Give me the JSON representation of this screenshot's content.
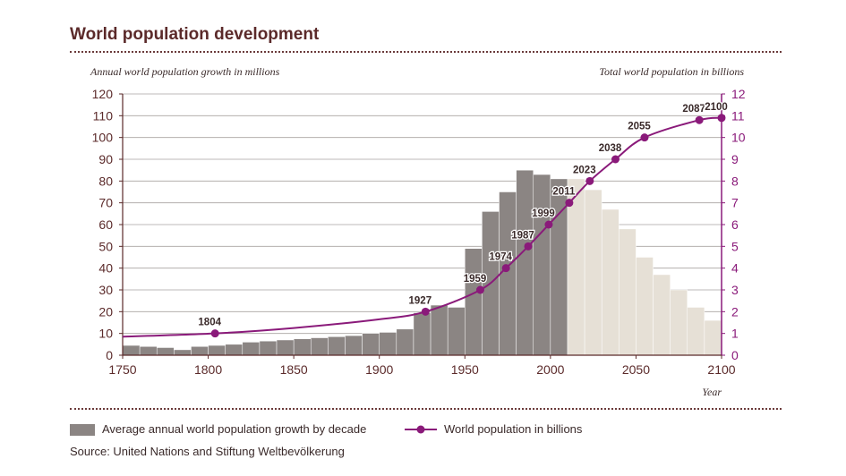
{
  "title": "World population development",
  "left_axis_caption": "Annual world population growth in millions",
  "right_axis_caption": "Total world population in billions",
  "x_axis_caption": "Year",
  "legend": {
    "bars": "Average annual world population growth by decade",
    "line": "World population in billions"
  },
  "source": "Source: United Nations and Stiftung Weltbevölkerung",
  "colors": {
    "bar_historic": "#8b8583",
    "bar_projected": "#e6e0d6",
    "line": "#8a1a7a",
    "tick_text": "#5b2a2a",
    "line_axis_text": "#8a1a7a",
    "grid": "#a9a3a0"
  },
  "chart_data": {
    "type": "bar+line",
    "x_range": [
      1750,
      2100
    ],
    "x_ticks": [
      1750,
      1800,
      1850,
      1900,
      1950,
      2000,
      2050,
      2100
    ],
    "left_axis": {
      "label": "Annual world population growth in millions",
      "range": [
        0,
        120
      ],
      "ticks": [
        0,
        10,
        20,
        30,
        40,
        50,
        60,
        70,
        80,
        90,
        100,
        110,
        120
      ]
    },
    "right_axis": {
      "label": "Total world population in billions",
      "range": [
        0,
        12
      ],
      "ticks": [
        0,
        1,
        2,
        3,
        4,
        5,
        6,
        7,
        8,
        9,
        10,
        11,
        12
      ]
    },
    "bars": {
      "name": "Average annual world population growth by decade",
      "decades": [
        1750,
        1760,
        1770,
        1780,
        1790,
        1800,
        1810,
        1820,
        1830,
        1840,
        1850,
        1860,
        1870,
        1880,
        1890,
        1900,
        1910,
        1920,
        1930,
        1940,
        1950,
        1960,
        1970,
        1980,
        1990,
        2000,
        2010,
        2020,
        2030,
        2040,
        2050,
        2060,
        2070,
        2080,
        2090
      ],
      "values": [
        4.5,
        4,
        3.5,
        2.5,
        4,
        4.5,
        5,
        6,
        6.5,
        7,
        7.5,
        8,
        8.5,
        9,
        10,
        10.5,
        12,
        19.5,
        23,
        22,
        49,
        66,
        75,
        85,
        83,
        81,
        81,
        76,
        67,
        58,
        45,
        37,
        30,
        22,
        16
      ],
      "projected_from": 2010
    },
    "line": {
      "name": "World population in billions",
      "points": [
        {
          "year": 1750,
          "value": 0.85
        },
        {
          "year": 1804,
          "value": 1,
          "label": "1804"
        },
        {
          "year": 1850,
          "value": 1.25
        },
        {
          "year": 1900,
          "value": 1.65
        },
        {
          "year": 1927,
          "value": 2,
          "label": "1927"
        },
        {
          "year": 1959,
          "value": 3,
          "label": "1959"
        },
        {
          "year": 1974,
          "value": 4,
          "label": "1974"
        },
        {
          "year": 1987,
          "value": 5,
          "label": "1987"
        },
        {
          "year": 1999,
          "value": 6,
          "label": "1999"
        },
        {
          "year": 2011,
          "value": 7,
          "label": "2011"
        },
        {
          "year": 2023,
          "value": 8,
          "label": "2023"
        },
        {
          "year": 2038,
          "value": 9,
          "label": "2038"
        },
        {
          "year": 2055,
          "value": 10,
          "label": "2055"
        },
        {
          "year": 2087,
          "value": 10.8,
          "label": "2087"
        },
        {
          "year": 2100,
          "value": 10.9,
          "label": "2100"
        }
      ]
    }
  }
}
